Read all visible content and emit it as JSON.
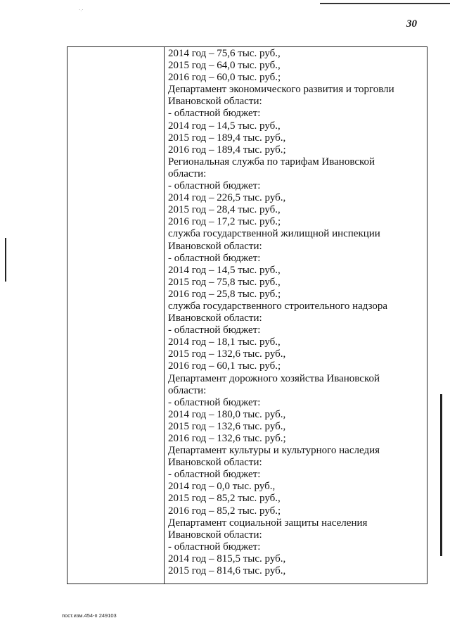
{
  "page_number": "30",
  "table": {
    "left_cell": "",
    "lines": [
      "2014 год – 75,6 тыс. руб.,",
      "2015 год – 64,0 тыс. руб.,",
      "2016 год – 60,0 тыс. руб.;",
      "Департамент экономического развития и торговли",
      "Ивановской области:",
      "- областной бюджет:",
      "2014 год – 14,5 тыс. руб.,",
      "2015 год – 189,4 тыс. руб.,",
      "2016 год – 189,4 тыс. руб.;",
      "Региональная служба по тарифам Ивановской",
      "области:",
      "- областной бюджет:",
      "2014 год – 226,5 тыс. руб.,",
      "2015 год – 28,4 тыс. руб.,",
      "2016 год – 17,2 тыс. руб.;",
      "служба государственной жилищной инспекции",
      "Ивановской области:",
      "- областной бюджет:",
      "2014 год – 14,5 тыс. руб.,",
      "2015 год – 75,8 тыс. руб.,",
      "2016 год – 25,8 тыс. руб.;",
      "служба государственного строительного надзора",
      "Ивановской области:",
      "- областной бюджет:",
      "2014 год – 18,1 тыс. руб.,",
      "2015 год – 132,6 тыс. руб.,",
      "2016 год – 60,1 тыс. руб.;",
      "Департамент дорожного хозяйства Ивановской",
      "области:",
      "- областной бюджет:",
      "2014 год – 180,0 тыс. руб.,",
      "2015 год – 132,6 тыс. руб.,",
      "2016 год – 132,6 тыс. руб.;",
      "Департамент культуры и культурного наследия",
      "Ивановской области:",
      "- областной бюджет:",
      "2014 год – 0,0 тыс. руб.,",
      "2015 год – 85,2 тыс. руб.,",
      "2016 год – 85,2 тыс. руб.;",
      "Департамент социальной защиты населения",
      "Ивановской области:",
      "- областной бюджет:",
      "2014 год – 815,5 тыс. руб.,",
      "2015 год – 814,6 тыс. руб.,"
    ]
  },
  "footer": "пост.изм.454-п 249103"
}
